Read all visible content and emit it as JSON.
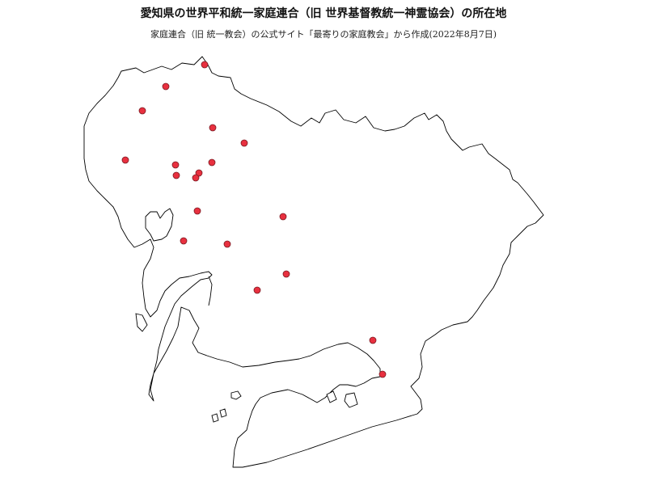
{
  "title": "愛知県の世界平和統一家庭連合（旧 世界基督教統一神霊協会）の所在地",
  "subtitle": "家庭連合（旧 統一教会）の公式サイト「最寄りの家庭教会」から作成(2022年8月7日)",
  "marker_color": "#e8303f",
  "church_count": 21
}
